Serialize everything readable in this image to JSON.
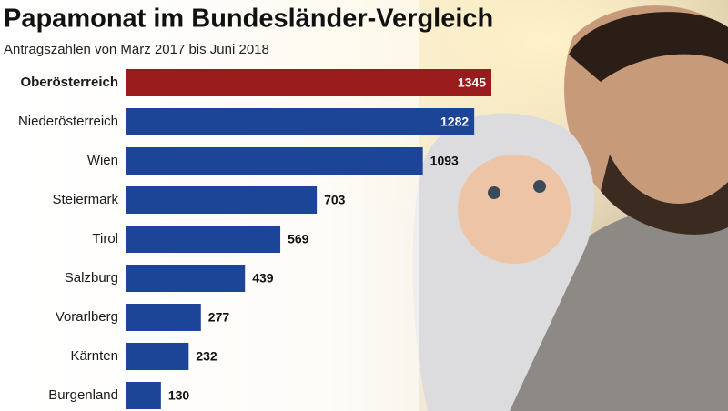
{
  "chart_data": {
    "type": "bar",
    "orientation": "horizontal",
    "title": "Papamonat im Bundesländer-Vergleich",
    "subtitle": "Antragszahlen von März 2017 bis Juni 2018",
    "categories": [
      "Oberösterreich",
      "Niederösterreich",
      "Wien",
      "Steiermark",
      "Tirol",
      "Salzburg",
      "Vorarlberg",
      "Kärnten",
      "Burgenland"
    ],
    "values": [
      1345,
      1282,
      1093,
      703,
      569,
      439,
      277,
      232,
      130
    ],
    "colors": [
      "#9a1b1c",
      "#1d4597",
      "#1d4597",
      "#1d4597",
      "#1d4597",
      "#1d4597",
      "#1d4597",
      "#1d4597",
      "#1d4597"
    ]
  }
}
